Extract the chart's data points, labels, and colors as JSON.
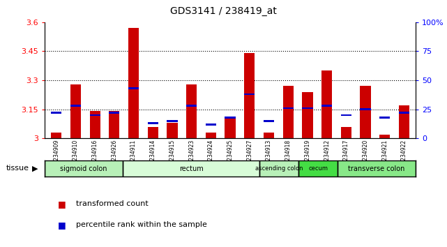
{
  "title": "GDS3141 / 238419_at",
  "samples": [
    "GSM234909",
    "GSM234910",
    "GSM234916",
    "GSM234926",
    "GSM234911",
    "GSM234914",
    "GSM234915",
    "GSM234923",
    "GSM234924",
    "GSM234925",
    "GSM234927",
    "GSM234913",
    "GSM234918",
    "GSM234919",
    "GSM234912",
    "GSM234917",
    "GSM234920",
    "GSM234921",
    "GSM234922"
  ],
  "red_values": [
    3.03,
    3.28,
    3.14,
    3.14,
    3.57,
    3.06,
    3.08,
    3.28,
    3.03,
    3.11,
    3.44,
    3.03,
    3.27,
    3.24,
    3.35,
    3.06,
    3.27,
    3.02,
    3.17
  ],
  "blue_values": [
    0.22,
    0.28,
    0.2,
    0.22,
    0.43,
    0.13,
    0.15,
    0.28,
    0.12,
    0.18,
    0.38,
    0.15,
    0.26,
    0.26,
    0.28,
    0.2,
    0.25,
    0.18,
    0.22
  ],
  "ymin": 3.0,
  "ymax": 3.6,
  "yticks": [
    3.0,
    3.15,
    3.3,
    3.45,
    3.6
  ],
  "ytick_labels": [
    "3",
    "3.15",
    "3.3",
    "3.45",
    "3.6"
  ],
  "right_yticks": [
    0.0,
    0.25,
    0.5,
    0.75,
    1.0
  ],
  "right_ytick_labels": [
    "0",
    "25",
    "50",
    "75",
    "100%"
  ],
  "dotted_lines": [
    3.15,
    3.3,
    3.45
  ],
  "tissues": [
    {
      "label": "sigmoid colon",
      "start": 0,
      "end": 4,
      "color": "#b8f0b8"
    },
    {
      "label": "rectum",
      "start": 4,
      "end": 11,
      "color": "#d8fcd8"
    },
    {
      "label": "ascending colon",
      "start": 11,
      "end": 13,
      "color": "#b8f0b8"
    },
    {
      "label": "cecum",
      "start": 13,
      "end": 15,
      "color": "#44dd44"
    },
    {
      "label": "transverse colon",
      "start": 15,
      "end": 19,
      "color": "#88e888"
    }
  ],
  "bar_width": 0.55,
  "red_color": "#cc0000",
  "blue_color": "#0000cc",
  "bg_color": "#ffffff",
  "tick_label_color_left": "red",
  "tick_label_color_right": "blue"
}
